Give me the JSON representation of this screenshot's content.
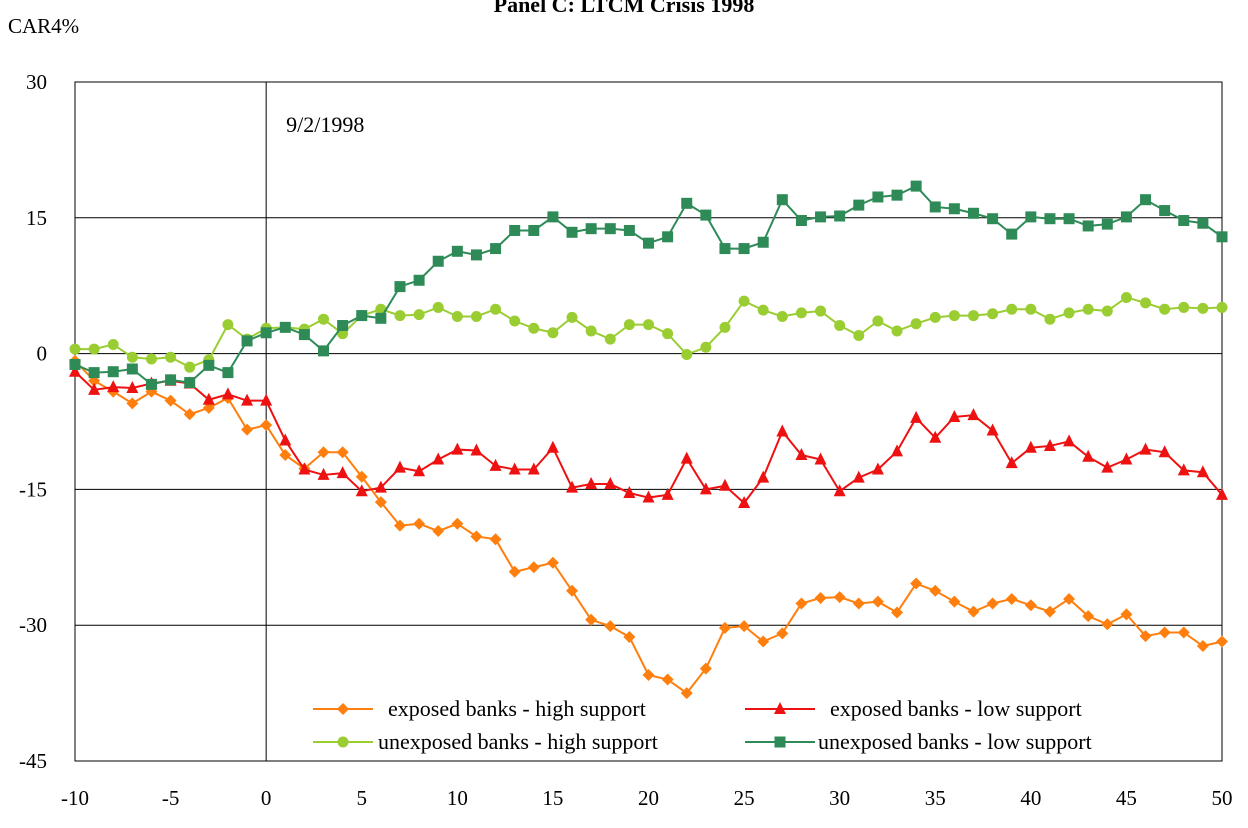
{
  "chart_data": {
    "type": "line",
    "title": "Panel C: LTCM Crisis 1998",
    "ylabel": "CAR4%",
    "xlabel": "",
    "xlim": [
      -10,
      50
    ],
    "ylim": [
      -45,
      30
    ],
    "xticks": [
      -10,
      -5,
      0,
      5,
      10,
      15,
      20,
      25,
      30,
      35,
      40,
      45,
      50
    ],
    "yticks": [
      30,
      15,
      0,
      -15,
      -30,
      -45
    ],
    "grid": "horizontal",
    "event_line_x": 0,
    "annotation": "9/2/1998",
    "legend_placement": "bottom-right",
    "x": [
      -10,
      -9,
      -8,
      -7,
      -6,
      -5,
      -4,
      -3,
      -2,
      -1,
      0,
      1,
      2,
      3,
      4,
      5,
      6,
      7,
      8,
      9,
      10,
      11,
      12,
      13,
      14,
      15,
      16,
      17,
      18,
      19,
      20,
      21,
      22,
      23,
      24,
      25,
      26,
      27,
      28,
      29,
      30,
      31,
      32,
      33,
      34,
      35,
      36,
      37,
      38,
      39,
      40,
      41,
      42,
      43,
      44,
      45,
      46,
      47,
      48,
      49,
      50
    ],
    "series": [
      {
        "name": "exposed banks - high support",
        "color": "#ff7f0e",
        "marker": "diamond",
        "values": [
          -0.8,
          -3.0,
          -4.2,
          -5.5,
          -4.2,
          -5.2,
          -6.7,
          -6.0,
          -4.9,
          -8.4,
          -7.9,
          -11.2,
          -12.7,
          -10.9,
          -10.9,
          -13.6,
          -16.4,
          -19.0,
          -18.8,
          -19.6,
          -18.8,
          -20.2,
          -20.5,
          -24.1,
          -23.6,
          -23.1,
          -26.2,
          -29.4,
          -30.1,
          -31.3,
          -35.5,
          -36.0,
          -37.5,
          -34.8,
          -30.3,
          -30.1,
          -31.8,
          -30.9,
          -27.6,
          -27.0,
          -26.9,
          -27.6,
          -27.4,
          -28.6,
          -25.4,
          -26.2,
          -27.4,
          -28.5,
          -27.6,
          -27.1,
          -27.8,
          -28.5,
          -27.1,
          -29.0,
          -29.9,
          -28.8,
          -31.2,
          -30.8,
          -30.8,
          -32.3,
          -31.8
        ]
      },
      {
        "name": "exposed banks - low support",
        "color": "#ee1111",
        "marker": "triangle",
        "values": [
          -2.0,
          -4.0,
          -3.7,
          -3.8,
          -3.3,
          -3.0,
          -3.3,
          -5.1,
          -4.5,
          -5.2,
          -5.2,
          -9.6,
          -12.8,
          -13.4,
          -13.2,
          -15.2,
          -14.8,
          -12.6,
          -13.0,
          -11.7,
          -10.6,
          -10.7,
          -12.4,
          -12.8,
          -12.8,
          -10.4,
          -14.8,
          -14.4,
          -14.4,
          -15.4,
          -15.9,
          -15.6,
          -11.6,
          -15.0,
          -14.6,
          -16.5,
          -13.7,
          -8.6,
          -11.2,
          -11.7,
          -15.2,
          -13.7,
          -12.8,
          -10.8,
          -7.1,
          -9.3,
          -7.0,
          -6.8,
          -8.5,
          -12.1,
          -10.4,
          -10.2,
          -9.7,
          -11.4,
          -12.6,
          -11.7,
          -10.6,
          -10.9,
          -12.9,
          -13.1,
          -15.6
        ]
      },
      {
        "name": "unexposed banks - high support",
        "color": "#9acd32",
        "marker": "circle",
        "values": [
          0.5,
          0.5,
          1.0,
          -0.4,
          -0.6,
          -0.4,
          -1.5,
          -0.7,
          3.2,
          1.6,
          2.8,
          2.9,
          2.7,
          3.8,
          2.2,
          4.2,
          4.9,
          4.2,
          4.3,
          5.1,
          4.1,
          4.1,
          4.9,
          3.6,
          2.8,
          2.3,
          4.0,
          2.5,
          1.6,
          3.2,
          3.2,
          2.2,
          -0.1,
          0.7,
          2.9,
          5.8,
          4.8,
          4.1,
          4.5,
          4.7,
          3.1,
          2.0,
          3.6,
          2.5,
          3.3,
          4.0,
          4.2,
          4.2,
          4.4,
          4.9,
          4.9,
          3.8,
          4.5,
          4.9,
          4.7,
          6.2,
          5.6,
          4.9,
          5.1,
          5.0,
          5.1
        ]
      },
      {
        "name": "unexposed banks - low support",
        "color": "#2e8b57",
        "marker": "square",
        "values": [
          -1.2,
          -2.1,
          -2.0,
          -1.7,
          -3.4,
          -2.9,
          -3.2,
          -1.3,
          -2.1,
          1.4,
          2.3,
          2.9,
          2.1,
          0.3,
          3.1,
          4.2,
          3.9,
          7.4,
          8.1,
          10.2,
          11.3,
          10.9,
          11.6,
          13.6,
          13.6,
          15.1,
          13.4,
          13.8,
          13.8,
          13.6,
          12.2,
          12.9,
          16.6,
          15.3,
          11.6,
          11.6,
          12.3,
          17.0,
          14.7,
          15.1,
          15.2,
          16.4,
          17.3,
          17.5,
          18.5,
          16.2,
          16.0,
          15.5,
          14.9,
          13.2,
          15.1,
          14.9,
          14.9,
          14.1,
          14.3,
          15.1,
          17.0,
          15.8,
          14.7,
          14.4,
          12.9
        ]
      }
    ]
  }
}
